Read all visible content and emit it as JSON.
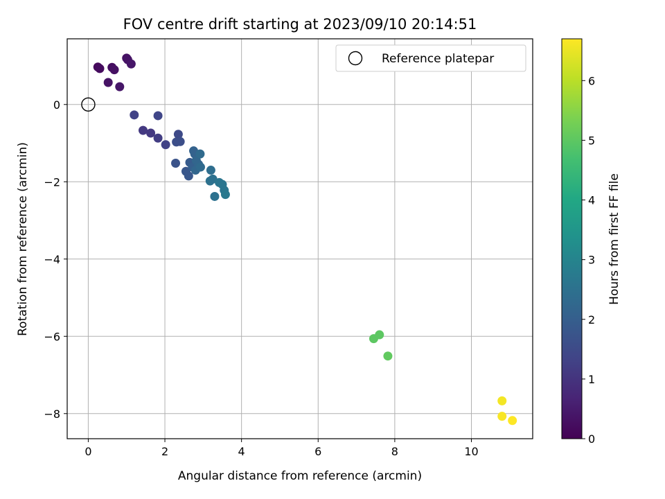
{
  "chart_data": {
    "type": "scatter",
    "title": "FOV centre drift starting at 2023/09/10 20:14:51",
    "xlabel": "Angular distance from reference (arcmin)",
    "ylabel": "Rotation from reference (arcmin)",
    "xlim": [
      -0.55,
      11.6
    ],
    "ylim": [
      -8.65,
      1.7
    ],
    "xticks": [
      0,
      2,
      4,
      6,
      8,
      10
    ],
    "yticks": [
      0,
      -2,
      -4,
      -6,
      -8
    ],
    "xtick_labels": [
      "0",
      "2",
      "4",
      "6",
      "8",
      "10"
    ],
    "ytick_labels": [
      "0",
      "−2",
      "−4",
      "−6",
      "−8"
    ],
    "grid": true,
    "legend": {
      "position": "top-right",
      "entries": [
        "Reference platepar"
      ]
    },
    "reference_point": {
      "x": 0,
      "y": 0,
      "label": "Reference platepar"
    },
    "colorbar": {
      "label": "Hours from first FF file",
      "range": [
        0,
        6.7
      ],
      "ticks": [
        0,
        1,
        2,
        3,
        4,
        5,
        6
      ],
      "tick_labels": [
        "0",
        "1",
        "2",
        "3",
        "4",
        "5",
        "6"
      ],
      "colormap": "viridis"
    },
    "points": [
      {
        "x": 0.25,
        "y": 0.97,
        "c": 0.15
      },
      {
        "x": 0.3,
        "y": 0.93,
        "c": 0.2
      },
      {
        "x": 0.62,
        "y": 0.96,
        "c": 0.25
      },
      {
        "x": 0.68,
        "y": 0.9,
        "c": 0.3
      },
      {
        "x": 1.0,
        "y": 1.2,
        "c": 0.3
      },
      {
        "x": 1.03,
        "y": 1.16,
        "c": 0.35
      },
      {
        "x": 1.12,
        "y": 1.05,
        "c": 0.4
      },
      {
        "x": 0.52,
        "y": 0.57,
        "c": 0.35
      },
      {
        "x": 0.82,
        "y": 0.46,
        "c": 0.4
      },
      {
        "x": 1.2,
        "y": -0.27,
        "c": 1.3
      },
      {
        "x": 1.82,
        "y": -0.29,
        "c": 1.4
      },
      {
        "x": 1.43,
        "y": -0.67,
        "c": 1.1
      },
      {
        "x": 1.63,
        "y": -0.74,
        "c": 1.1
      },
      {
        "x": 1.82,
        "y": -0.87,
        "c": 1.2
      },
      {
        "x": 2.02,
        "y": -1.04,
        "c": 1.3
      },
      {
        "x": 2.35,
        "y": -0.77,
        "c": 1.5
      },
      {
        "x": 2.3,
        "y": -0.97,
        "c": 1.6
      },
      {
        "x": 2.4,
        "y": -0.96,
        "c": 1.6
      },
      {
        "x": 2.28,
        "y": -1.52,
        "c": 1.7
      },
      {
        "x": 2.55,
        "y": -1.73,
        "c": 1.8
      },
      {
        "x": 2.62,
        "y": -1.85,
        "c": 1.8
      },
      {
        "x": 2.65,
        "y": -1.5,
        "c": 1.9
      },
      {
        "x": 2.72,
        "y": -1.62,
        "c": 2.0
      },
      {
        "x": 2.75,
        "y": -1.2,
        "c": 2.1
      },
      {
        "x": 2.78,
        "y": -1.28,
        "c": 2.1
      },
      {
        "x": 2.82,
        "y": -1.45,
        "c": 2.2
      },
      {
        "x": 2.88,
        "y": -1.55,
        "c": 2.2
      },
      {
        "x": 2.8,
        "y": -1.7,
        "c": 2.2
      },
      {
        "x": 2.92,
        "y": -1.28,
        "c": 2.3
      },
      {
        "x": 2.93,
        "y": -1.62,
        "c": 2.3
      },
      {
        "x": 3.2,
        "y": -1.7,
        "c": 2.4
      },
      {
        "x": 3.18,
        "y": -1.98,
        "c": 2.5
      },
      {
        "x": 3.25,
        "y": -1.93,
        "c": 2.5
      },
      {
        "x": 3.3,
        "y": -2.38,
        "c": 2.5
      },
      {
        "x": 3.42,
        "y": -2.02,
        "c": 2.6
      },
      {
        "x": 3.5,
        "y": -2.07,
        "c": 2.6
      },
      {
        "x": 3.55,
        "y": -2.22,
        "c": 2.6
      },
      {
        "x": 3.58,
        "y": -2.33,
        "c": 2.7
      },
      {
        "x": 7.45,
        "y": -6.06,
        "c": 5.0
      },
      {
        "x": 7.6,
        "y": -5.96,
        "c": 5.0
      },
      {
        "x": 7.82,
        "y": -6.51,
        "c": 5.05
      },
      {
        "x": 10.8,
        "y": -7.67,
        "c": 6.6
      },
      {
        "x": 10.8,
        "y": -8.07,
        "c": 6.65
      },
      {
        "x": 11.07,
        "y": -8.18,
        "c": 6.7
      }
    ]
  }
}
